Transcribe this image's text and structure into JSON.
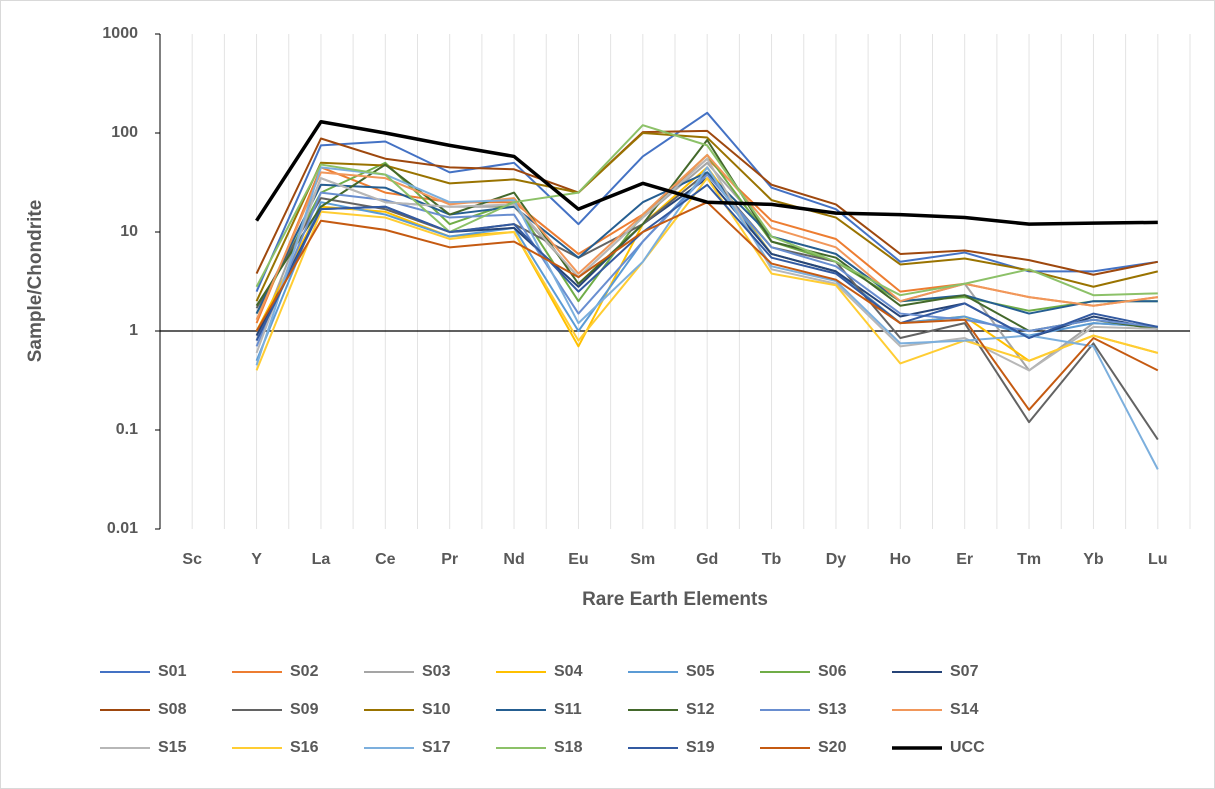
{
  "chart_data": {
    "type": "line",
    "log_scale": true,
    "grid": "x",
    "x_axis_crosses": 1,
    "xlabel": "Rare Earth Elements",
    "ylabel": "Sample/Chondrite",
    "categories": [
      "Sc",
      "Y",
      "La",
      "Ce",
      "Pr",
      "Nd",
      "Eu",
      "Sm",
      "Gd",
      "Tb",
      "Dy",
      "Ho",
      "Er",
      "Tm",
      "Yb",
      "Lu"
    ],
    "ylim": [
      0.01,
      1000
    ],
    "yticks": [
      0.01,
      0.1,
      1,
      10,
      100,
      1000
    ],
    "series": [
      {
        "name": "S01",
        "color": "#4472C4",
        "values": [
          null,
          2.5,
          75,
          82,
          40,
          50,
          12,
          58,
          160,
          28,
          17,
          5,
          6.2,
          4,
          4,
          5
        ]
      },
      {
        "name": "S02",
        "color": "#ED7D31",
        "values": [
          null,
          1.2,
          45,
          25,
          20,
          20,
          6,
          15,
          55,
          13,
          8.5,
          2.5,
          3,
          2.2,
          1.8,
          2.2
        ]
      },
      {
        "name": "S03",
        "color": "#A5A5A5",
        "values": [
          null,
          0.8,
          35,
          20,
          18,
          18,
          3.5,
          14,
          50,
          9,
          6,
          2,
          3,
          0.4,
          1.2,
          1.1
        ]
      },
      {
        "name": "S04",
        "color": "#FFC000",
        "values": [
          null,
          1,
          18,
          16,
          9,
          10,
          0.7,
          12,
          45,
          6,
          4,
          1.2,
          1.4,
          0.5,
          0.9,
          0.6
        ]
      },
      {
        "name": "S05",
        "color": "#5B9BD5",
        "values": [
          null,
          0.5,
          20,
          15,
          9,
          11,
          1,
          8,
          40,
          6,
          4,
          1.2,
          1.4,
          0.9,
          1.2,
          1.1
        ]
      },
      {
        "name": "S06",
        "color": "#70AD47",
        "values": [
          null,
          1.5,
          25,
          50,
          12,
          20,
          2,
          15,
          60,
          8,
          5,
          2,
          2.2,
          1.6,
          2,
          2
        ]
      },
      {
        "name": "S07",
        "color": "#264478",
        "values": [
          null,
          0.9,
          17,
          18,
          10,
          11,
          2.8,
          12,
          35,
          6,
          4,
          1.4,
          1.9,
          0.85,
          1.4,
          1.05
        ]
      },
      {
        "name": "S08",
        "color": "#9E480E",
        "values": [
          null,
          3.8,
          88,
          55,
          45,
          43,
          25,
          102,
          105,
          30,
          19,
          6,
          6.5,
          5.2,
          3.7,
          5
        ]
      },
      {
        "name": "S09",
        "color": "#636363",
        "values": [
          null,
          1.7,
          22,
          17,
          10,
          12,
          5.5,
          12,
          40,
          7,
          5,
          0.85,
          1.2,
          0.12,
          0.75,
          0.08
        ]
      },
      {
        "name": "S10",
        "color": "#997300",
        "values": [
          null,
          2,
          50,
          47,
          31,
          34,
          25,
          100,
          90,
          21,
          14,
          4.7,
          5.4,
          4.1,
          2.8,
          4
        ]
      },
      {
        "name": "S11",
        "color": "#255E91",
        "values": [
          null,
          1.5,
          30,
          28,
          15,
          18,
          5.5,
          20,
          40,
          9,
          6,
          2,
          2.3,
          1.5,
          2,
          2
        ]
      },
      {
        "name": "S12",
        "color": "#43682B",
        "values": [
          null,
          1.8,
          18,
          48,
          15,
          25,
          3,
          12,
          85,
          8,
          5.5,
          1.8,
          2.3,
          1,
          1.3,
          1.05
        ]
      },
      {
        "name": "S13",
        "color": "#698ED0",
        "values": [
          null,
          0.7,
          25,
          21,
          14,
          15,
          1.5,
          8,
          38,
          7,
          4.5,
          1.5,
          1.3,
          1,
          1.3,
          1.1
        ]
      },
      {
        "name": "S14",
        "color": "#F1975A",
        "values": [
          null,
          1.3,
          40,
          35,
          19,
          22,
          3.8,
          15,
          60,
          11,
          7,
          2,
          3,
          2.2,
          1.8,
          2.2
        ]
      },
      {
        "name": "S15",
        "color": "#B7B7B7",
        "values": [
          null,
          0.6,
          35,
          20,
          18,
          19,
          3.5,
          14,
          55,
          4.2,
          3,
          0.7,
          0.85,
          0.4,
          1.1,
          1.05
        ]
      },
      {
        "name": "S16",
        "color": "#FFCD33",
        "values": [
          null,
          0.4,
          16,
          14,
          8.5,
          10,
          0.8,
          5,
          35,
          3.8,
          2.9,
          0.47,
          0.8,
          0.5,
          0.9,
          0.6
        ]
      },
      {
        "name": "S17",
        "color": "#7CAFDD",
        "values": [
          null,
          0.45,
          45,
          38,
          20,
          21,
          1.2,
          5,
          45,
          4.5,
          3.2,
          0.75,
          0.8,
          0.9,
          0.7,
          0.04
        ]
      },
      {
        "name": "S18",
        "color": "#8CC168",
        "values": [
          null,
          2.8,
          48,
          38,
          10,
          20,
          25,
          120,
          75,
          9,
          5,
          2.3,
          3,
          4.2,
          2.3,
          2.4
        ]
      },
      {
        "name": "S19",
        "color": "#335AA1",
        "values": [
          null,
          0.8,
          17,
          18,
          10,
          12,
          2.5,
          10,
          30,
          5.5,
          3.8,
          1.2,
          1.9,
          0.85,
          1.5,
          1.1
        ]
      },
      {
        "name": "S20",
        "color": "#C55A11",
        "values": [
          null,
          1,
          13,
          10.5,
          7,
          8,
          3.5,
          10,
          20,
          4.8,
          3.3,
          1.2,
          1.3,
          0.16,
          0.85,
          0.4
        ]
      },
      {
        "name": "UCC",
        "color": "#000000",
        "values": [
          null,
          13,
          130,
          100,
          75,
          58,
          17,
          31,
          20,
          19,
          15.5,
          15,
          14,
          12,
          12.3,
          12.5
        ]
      }
    ]
  }
}
